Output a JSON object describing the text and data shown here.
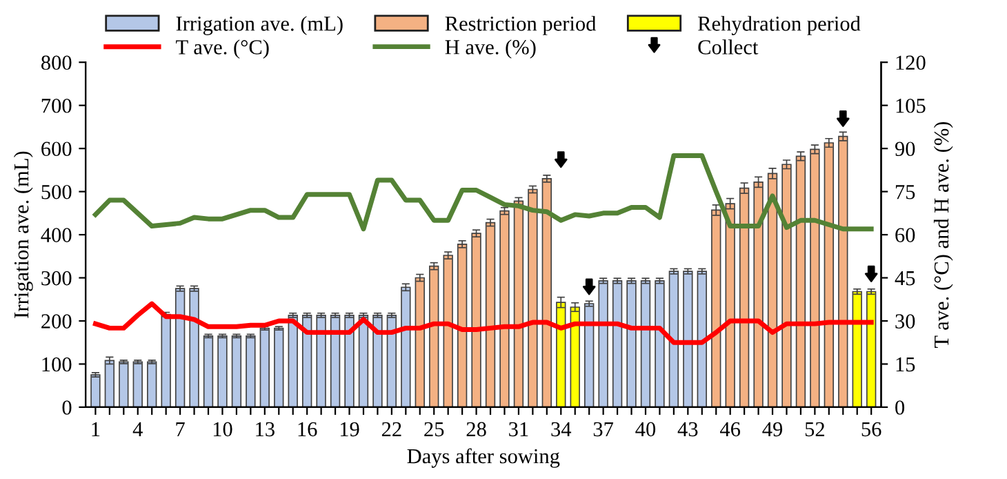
{
  "chart_data": {
    "type": "bar",
    "xlabel": "Days after sowing",
    "ylabel": "Irrigation ave. (mL)",
    "y2label": "T ave. (°C) and H ave. (%)",
    "categories": [
      "1",
      null,
      null,
      "4",
      null,
      null,
      "7",
      null,
      null,
      "10",
      null,
      null,
      "13",
      null,
      null,
      "16",
      null,
      null,
      "19",
      null,
      null,
      "22",
      null,
      null,
      "25",
      null,
      null,
      "28",
      null,
      null,
      "31",
      null,
      null,
      "34",
      null,
      null,
      "37",
      null,
      null,
      "40",
      null,
      null,
      "43",
      null,
      null,
      "46",
      null,
      null,
      "49",
      null,
      null,
      "52",
      null,
      null,
      null,
      "56"
    ],
    "ylim": [
      0,
      800
    ],
    "yticks": [
      0,
      100,
      200,
      300,
      400,
      500,
      600,
      700,
      800
    ],
    "y2lim": [
      0,
      120
    ],
    "y2ticks": [
      0,
      15,
      30,
      45,
      60,
      75,
      90,
      105,
      120
    ],
    "grid": false,
    "legend": "top",
    "series": [
      {
        "name": "Irrigation ave. (mL)",
        "color": "#b4c7e7",
        "values": [
          75,
          108,
          105,
          105,
          105,
          215,
          275,
          275,
          165,
          165,
          165,
          165,
          183,
          183,
          213,
          213,
          213,
          213,
          213,
          213,
          213,
          213,
          278,
          null,
          null,
          null,
          null,
          null,
          null,
          null,
          null,
          null,
          null,
          null,
          null,
          240,
          293,
          293,
          293,
          293,
          293,
          315,
          315,
          315,
          null,
          null,
          null,
          null,
          null,
          null,
          null,
          null,
          null,
          null,
          null,
          null
        ],
        "errors": [
          5,
          8,
          4,
          4,
          4,
          5,
          6,
          6,
          4,
          4,
          4,
          4,
          4,
          4,
          5,
          5,
          5,
          5,
          5,
          5,
          5,
          5,
          8,
          null,
          null,
          null,
          null,
          null,
          null,
          null,
          null,
          null,
          null,
          null,
          null,
          6,
          6,
          6,
          6,
          6,
          6,
          6,
          6,
          6,
          null,
          null,
          null,
          null,
          null,
          null,
          null,
          null,
          null,
          null,
          null,
          null
        ]
      },
      {
        "name": "Restriction period",
        "color": "#f4b183",
        "values": [
          null,
          null,
          null,
          null,
          null,
          null,
          null,
          null,
          null,
          null,
          null,
          null,
          null,
          null,
          null,
          null,
          null,
          null,
          null,
          null,
          null,
          null,
          null,
          300,
          327,
          352,
          378,
          403,
          428,
          455,
          478,
          505,
          530,
          null,
          null,
          null,
          null,
          null,
          null,
          null,
          null,
          null,
          null,
          null,
          457,
          472,
          508,
          522,
          542,
          563,
          582,
          598,
          613,
          628,
          null,
          null
        ],
        "errors": [
          null,
          null,
          null,
          null,
          null,
          null,
          null,
          null,
          null,
          null,
          null,
          null,
          null,
          null,
          null,
          null,
          null,
          null,
          null,
          null,
          null,
          null,
          null,
          8,
          8,
          8,
          8,
          8,
          8,
          8,
          8,
          8,
          8,
          null,
          null,
          null,
          null,
          null,
          null,
          null,
          null,
          null,
          null,
          null,
          12,
          12,
          12,
          12,
          12,
          10,
          10,
          10,
          10,
          10,
          null,
          null
        ]
      },
      {
        "name": "Rehydration period",
        "color": "#ffff00",
        "values": [
          null,
          null,
          null,
          null,
          null,
          null,
          null,
          null,
          null,
          null,
          null,
          null,
          null,
          null,
          null,
          null,
          null,
          null,
          null,
          null,
          null,
          null,
          null,
          null,
          null,
          null,
          null,
          null,
          null,
          null,
          null,
          null,
          null,
          243,
          232,
          null,
          null,
          null,
          null,
          null,
          null,
          null,
          null,
          null,
          null,
          null,
          null,
          null,
          null,
          null,
          null,
          null,
          null,
          null,
          268,
          268
        ],
        "errors": [
          null,
          null,
          null,
          null,
          null,
          null,
          null,
          null,
          null,
          null,
          null,
          null,
          null,
          null,
          null,
          null,
          null,
          null,
          null,
          null,
          null,
          null,
          null,
          null,
          null,
          null,
          null,
          null,
          null,
          null,
          null,
          null,
          null,
          12,
          10,
          null,
          null,
          null,
          null,
          null,
          null,
          null,
          null,
          null,
          null,
          null,
          null,
          null,
          null,
          null,
          null,
          null,
          null,
          null,
          6,
          6
        ]
      },
      {
        "name": "T ave. (°C)",
        "type": "line",
        "axis": "y2",
        "color": "#ff0000",
        "values": [
          29,
          27.5,
          27.5,
          32,
          36,
          31.5,
          31.5,
          30.5,
          28,
          28,
          28,
          28.5,
          28.5,
          30,
          30,
          26,
          26,
          26,
          26,
          30.5,
          26,
          26,
          27.5,
          27.5,
          29,
          29,
          27,
          27,
          27.5,
          28,
          28,
          29.5,
          29.5,
          27.5,
          29,
          29,
          29,
          29,
          27.5,
          27.5,
          27.5,
          22.5,
          22.5,
          22.5,
          26,
          30,
          30,
          30,
          26,
          29,
          29,
          29,
          29.5,
          29.5,
          29.5,
          29.5
        ]
      },
      {
        "name": "H ave. (%)",
        "type": "line",
        "axis": "y2",
        "color": "#548235",
        "values": [
          67,
          72,
          72,
          67.5,
          63,
          63.5,
          64,
          66,
          65.5,
          65.5,
          67,
          68.5,
          68.5,
          66,
          66,
          74,
          74,
          74,
          74,
          62,
          79,
          79,
          72,
          72,
          65,
          65,
          75.5,
          75.5,
          73,
          70.5,
          70,
          68.5,
          68,
          65,
          67,
          66.5,
          67.5,
          67.5,
          69.5,
          69.5,
          66,
          87.5,
          87.5,
          87.5,
          75,
          63,
          63,
          63,
          73.5,
          62.5,
          65,
          65,
          63.5,
          62,
          62,
          62
        ]
      },
      {
        "name": "Collect",
        "type": "scatter",
        "color": "#000000",
        "values": [
          null,
          null,
          null,
          null,
          null,
          null,
          null,
          null,
          null,
          null,
          null,
          null,
          null,
          null,
          null,
          null,
          null,
          null,
          null,
          null,
          null,
          null,
          null,
          null,
          null,
          null,
          null,
          null,
          null,
          null,
          null,
          null,
          null,
          570,
          null,
          275,
          null,
          null,
          null,
          null,
          null,
          null,
          null,
          null,
          null,
          null,
          null,
          null,
          null,
          null,
          null,
          null,
          null,
          665,
          null,
          305
        ]
      }
    ]
  }
}
